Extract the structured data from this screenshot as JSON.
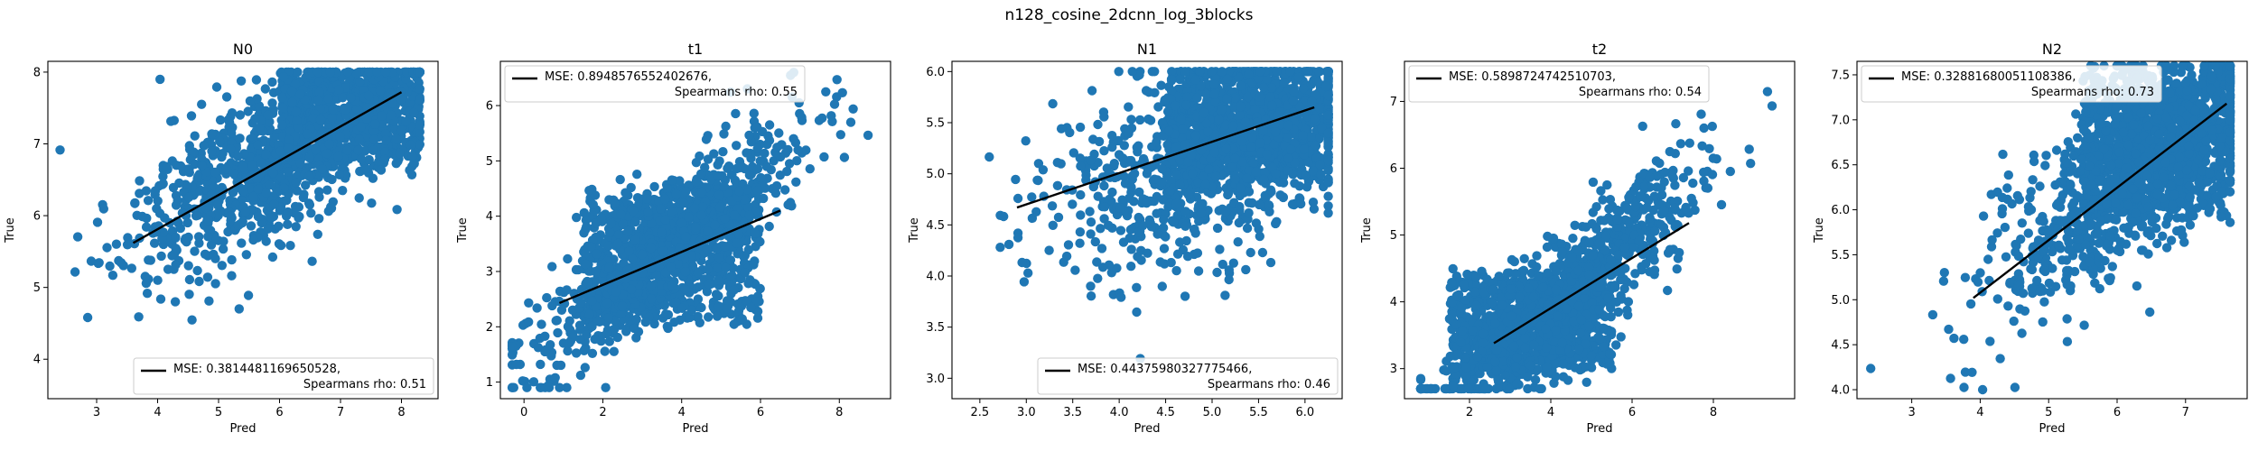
{
  "figure_title": "n128_cosine_2dcnn_log_3blocks",
  "colors": {
    "points": "#1f77b4",
    "fit_line": "#000000",
    "axes": "#000000",
    "legend_border": "#cccccc"
  },
  "chart_data": [
    {
      "type": "scatter",
      "title": "N0",
      "xlabel": "Pred",
      "ylabel": "True",
      "xlim": [
        2.2,
        8.6
      ],
      "ylim": [
        3.45,
        8.15
      ],
      "xticks": [
        "3",
        "4",
        "5",
        "6",
        "7",
        "8"
      ],
      "yticks": [
        "4",
        "5",
        "6",
        "7",
        "8"
      ],
      "grid": false,
      "legend": {
        "location": "lower-right",
        "line1": "MSE: 0.3814481169650528,",
        "line2": "Spearmans rho: 0.51"
      },
      "fit_line": {
        "x": [
          3.6,
          8.0
        ],
        "y": [
          5.62,
          7.72
        ]
      },
      "cloud": {
        "x_center": 5.8,
        "x_spread": 1.1,
        "x_min": 2.4,
        "x_max": 8.3,
        "slope": 0.48,
        "intercept": 3.9,
        "noise": 0.55,
        "y_min": 3.5,
        "y_max": 8.0,
        "n": 1600,
        "seed": 11,
        "dense_x": [
          6.0,
          8.3
        ],
        "dense_y": [
          6.8,
          8.0
        ]
      }
    },
    {
      "type": "scatter",
      "title": "t1",
      "xlabel": "Pred",
      "ylabel": "True",
      "xlim": [
        -0.6,
        9.3
      ],
      "ylim": [
        0.7,
        6.8
      ],
      "xticks": [
        "0",
        "2",
        "4",
        "6",
        "8"
      ],
      "yticks": [
        "1",
        "2",
        "3",
        "4",
        "5",
        "6"
      ],
      "grid": false,
      "legend": {
        "location": "upper-left",
        "line1": "MSE: 0.8948576552402676,",
        "line2": "Spearmans rho: 0.55"
      },
      "fit_line": {
        "x": [
          0.9,
          6.5
        ],
        "y": [
          2.43,
          4.1
        ]
      },
      "cloud": {
        "x_center": 3.6,
        "x_spread": 1.7,
        "x_min": -0.3,
        "x_max": 9.0,
        "slope": 0.55,
        "intercept": 1.4,
        "noise": 0.55,
        "y_min": 0.9,
        "y_max": 6.6,
        "n": 1600,
        "seed": 23,
        "dense_x": [
          1.5,
          6.0
        ],
        "dense_y": [
          2.2,
          4.4
        ]
      }
    },
    {
      "type": "scatter",
      "title": "N1",
      "xlabel": "Pred",
      "ylabel": "True",
      "xlim": [
        2.2,
        6.4
      ],
      "ylim": [
        2.8,
        6.1
      ],
      "xticks": [
        "2.5",
        "3.0",
        "3.5",
        "4.0",
        "4.5",
        "5.0",
        "5.5",
        "6.0"
      ],
      "yticks": [
        "3.0",
        "3.5",
        "4.0",
        "4.5",
        "5.0",
        "5.5",
        "6.0"
      ],
      "grid": false,
      "legend": {
        "location": "lower-right",
        "line1": "MSE: 0.44375980327775466,",
        "line2": "Spearmans rho: 0.46"
      },
      "fit_line": {
        "x": [
          2.9,
          6.1
        ],
        "y": [
          4.67,
          5.65
        ]
      },
      "cloud": {
        "x_center": 5.0,
        "x_spread": 0.85,
        "x_min": 2.3,
        "x_max": 6.25,
        "slope": 0.35,
        "intercept": 3.45,
        "noise": 0.5,
        "y_min": 2.9,
        "y_max": 6.0,
        "n": 1800,
        "seed": 37,
        "dense_x": [
          4.5,
          6.2
        ],
        "dense_y": [
          5.0,
          5.9
        ]
      }
    },
    {
      "type": "scatter",
      "title": "t2",
      "xlabel": "Pred",
      "ylabel": "True",
      "xlim": [
        0.4,
        10.0
      ],
      "ylim": [
        2.55,
        7.6
      ],
      "xticks": [
        "2",
        "4",
        "6",
        "8"
      ],
      "yticks": [
        "3",
        "4",
        "5",
        "6",
        "7"
      ],
      "grid": false,
      "legend": {
        "location": "upper-left",
        "line1": "MSE: 0.5898724742510703,",
        "line2": "Spearmans rho: 0.54"
      },
      "fit_line": {
        "x": [
          2.6,
          7.4
        ],
        "y": [
          3.38,
          5.18
        ]
      },
      "cloud": {
        "x_center": 4.5,
        "x_spread": 1.6,
        "x_min": 0.8,
        "x_max": 9.6,
        "slope": 0.55,
        "intercept": 1.7,
        "noise": 0.45,
        "y_min": 2.7,
        "y_max": 7.5,
        "n": 1600,
        "seed": 53,
        "dense_x": [
          1.5,
          5.5
        ],
        "dense_y": [
          3.0,
          4.4
        ]
      }
    },
    {
      "type": "scatter",
      "title": "N2",
      "xlabel": "Pred",
      "ylabel": "True",
      "xlim": [
        2.2,
        7.9
      ],
      "ylim": [
        3.9,
        7.65
      ],
      "xticks": [
        "3",
        "4",
        "5",
        "6",
        "7"
      ],
      "yticks": [
        "4.0",
        "4.5",
        "5.0",
        "5.5",
        "6.0",
        "6.5",
        "7.0",
        "7.5"
      ],
      "grid": false,
      "legend": {
        "location": "upper-left",
        "line1": "MSE: 0.32881680051108386,",
        "line2": "Spearmans rho: 0.73"
      },
      "fit_line": {
        "x": [
          3.9,
          7.6
        ],
        "y": [
          5.02,
          7.18
        ]
      },
      "cloud": {
        "x_center": 6.2,
        "x_spread": 1.0,
        "x_min": 2.4,
        "x_max": 7.65,
        "slope": 0.58,
        "intercept": 2.8,
        "noise": 0.5,
        "y_min": 4.0,
        "y_max": 7.6,
        "n": 1700,
        "seed": 71,
        "dense_x": [
          5.5,
          7.6
        ],
        "dense_y": [
          6.0,
          7.5
        ]
      }
    }
  ]
}
